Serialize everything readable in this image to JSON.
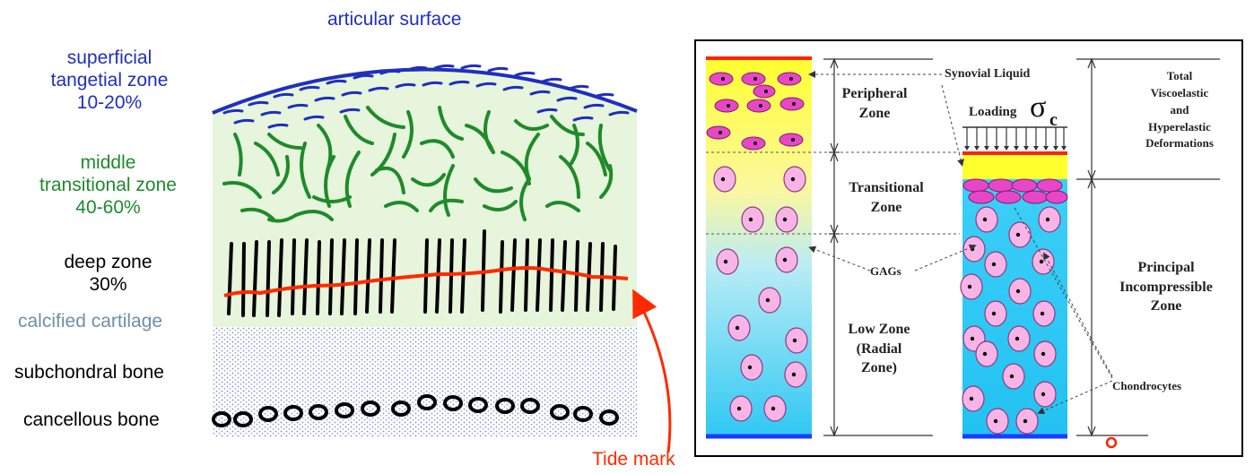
{
  "left_diagram": {
    "articular_surface": "articular surface",
    "superficial": {
      "line1": "superficial",
      "line2": "tangetial zone",
      "pct": "10-20%"
    },
    "middle": {
      "line1": "middle",
      "line2": "transitional zone",
      "pct": "40-60%"
    },
    "deep": {
      "line1": "deep zone",
      "pct": "30%"
    },
    "calcified": "calcified cartilage",
    "subchondral": "subchondral bone",
    "cancellous": "cancellous bone",
    "tide_mark": "Tide mark",
    "colors": {
      "superficial": "#1f2fbf",
      "middle": "#1f8a2a",
      "calcified": "#6f8fa8",
      "tide": "#ff2a00",
      "zone_bg": "#e6f5dc"
    }
  },
  "right_diagram": {
    "peripheral": {
      "line1": "Peripheral",
      "line2": "Zone"
    },
    "transitional": {
      "line1": "Transitional",
      "line2": "Zone"
    },
    "low": {
      "line1": "Low Zone",
      "line2": "(Radial",
      "line3": "Zone)"
    },
    "synovial": "Synovial Liquid",
    "loading": "Loading",
    "sigma": "σ",
    "sigma_sub": "c",
    "gags": "GAGs",
    "total": {
      "line1": "Total",
      "line2": "Viscoelastic",
      "line3": "and",
      "line4": "Hyperelastic",
      "line5": "Deformations"
    },
    "principal": {
      "line1": "Principal",
      "line2": "Incompressible",
      "line3": "Zone"
    },
    "chondrocytes": "Chondrocytes",
    "colors": {
      "top": "#ffff33",
      "bottom": "#33ccff",
      "cell": "#f8b4e6",
      "cell_top": "#e846c8",
      "surface": "#ff2200",
      "base": "#1a3cff"
    }
  }
}
